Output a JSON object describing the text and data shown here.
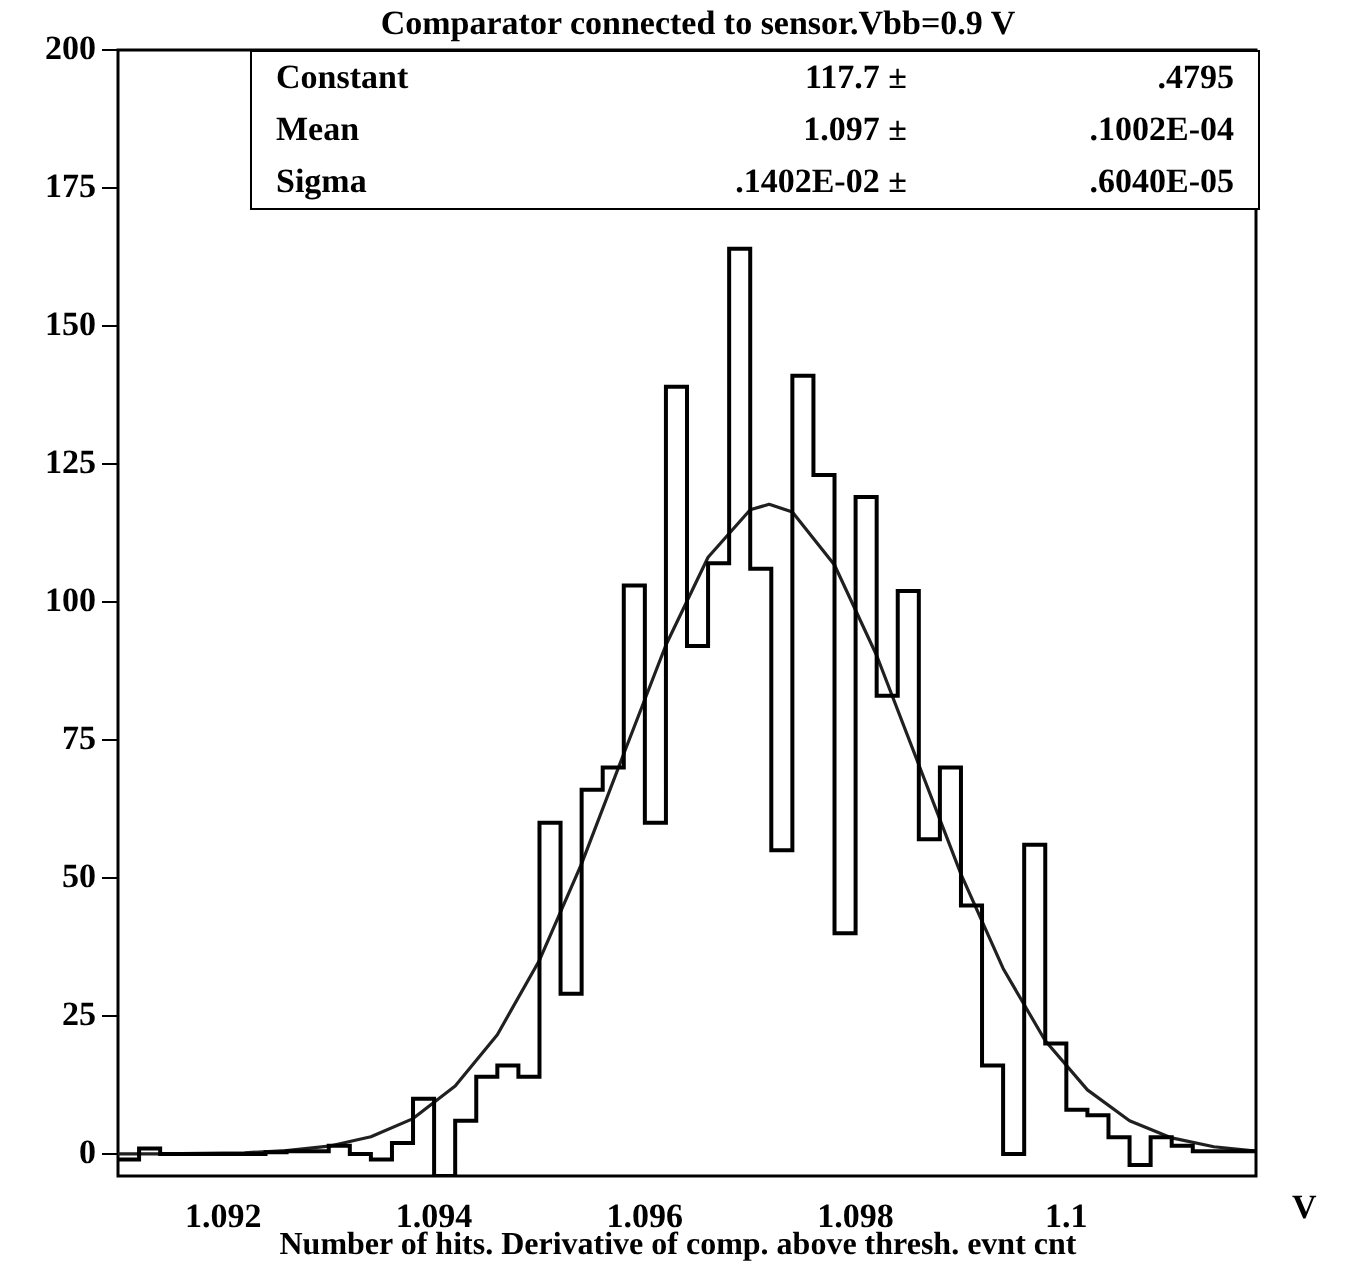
{
  "chart_data": {
    "type": "histogram",
    "title": "Comparator connected to sensor.Vbb=0.9 V",
    "xlabel": "Number of hits. Derivative of comp. above thresh. evnt cnt",
    "annotations": [
      "V",
      "Constant",
      "117.7 ±",
      ".4795",
      "Mean",
      "1.097 ±",
      ".1002E-04",
      "Sigma",
      ".1402E-02 ±",
      ".6040E-05"
    ],
    "xlim": [
      1.091,
      1.1018
    ],
    "xticks": [
      1.092,
      1.094,
      1.096,
      1.098,
      {
        "value": 1.1,
        "label": "1.1"
      }
    ],
    "ylim": [
      -4,
      200
    ],
    "yticks": [
      0,
      25,
      50,
      75,
      100,
      125,
      150,
      175,
      200
    ],
    "marker": "none",
    "color": "#000000",
    "bins": [
      1.091,
      1.0912,
      1.0914,
      1.0916,
      1.0918,
      1.092,
      1.0922,
      1.0924,
      1.0926,
      1.0928,
      1.093,
      1.0932,
      1.0934,
      1.0936,
      1.0938,
      1.094,
      1.0942,
      1.0944,
      1.0946,
      1.0948,
      1.095,
      1.0952,
      1.0954,
      1.0956,
      1.0958,
      1.096,
      1.0962,
      1.0964,
      1.0966,
      1.0968,
      1.097,
      1.0972,
      1.0974,
      1.0976,
      1.0978,
      1.098,
      1.0982,
      1.0984,
      1.0986,
      1.0988,
      1.099,
      1.0992,
      1.0994,
      1.0996,
      1.0998,
      1.1,
      1.1002,
      1.1004,
      1.1006,
      1.1008,
      1.101,
      1.1012,
      1.1014,
      1.1016,
      1.1018
    ],
    "values": [
      -1,
      1,
      0,
      0,
      0,
      0,
      0,
      0.3,
      0.5,
      0.5,
      1.5,
      0,
      -1,
      2,
      10,
      -4,
      6,
      14,
      16,
      14,
      60,
      29,
      66,
      70,
      103,
      60,
      139,
      92,
      107,
      164,
      106,
      55,
      141,
      123,
      40,
      119,
      83,
      102,
      57,
      70,
      45,
      16,
      0,
      56,
      20,
      8,
      7,
      3,
      -2,
      3,
      1.5,
      0.5,
      0.5,
      0.5
    ],
    "series": [
      {
        "type": "line",
        "color": "#202020",
        "x": [
          1.091,
          1.0914,
          1.0918,
          1.0922,
          1.0926,
          1.093,
          1.0934,
          1.0938,
          1.0942,
          1.0946,
          1.095,
          1.0954,
          1.0958,
          1.0962,
          1.0966,
          1.097,
          1.09718,
          1.0974,
          1.0978,
          1.0982,
          1.0986,
          1.099,
          1.0994,
          1.0998,
          1.1002,
          1.1006,
          1.101,
          1.1014,
          1.1018
        ],
        "values": [
          0,
          0,
          0.1,
          0.2,
          0.6,
          1.4,
          3.1,
          6.4,
          12.3,
          21.6,
          35.1,
          52.6,
          72.5,
          92.2,
          108.1,
          116.7,
          117.7,
          116.3,
          106.7,
          90.3,
          70.5,
          50.7,
          33.6,
          20.5,
          11.6,
          6,
          2.9,
          1.3,
          0.5
        ]
      }
    ]
  }
}
